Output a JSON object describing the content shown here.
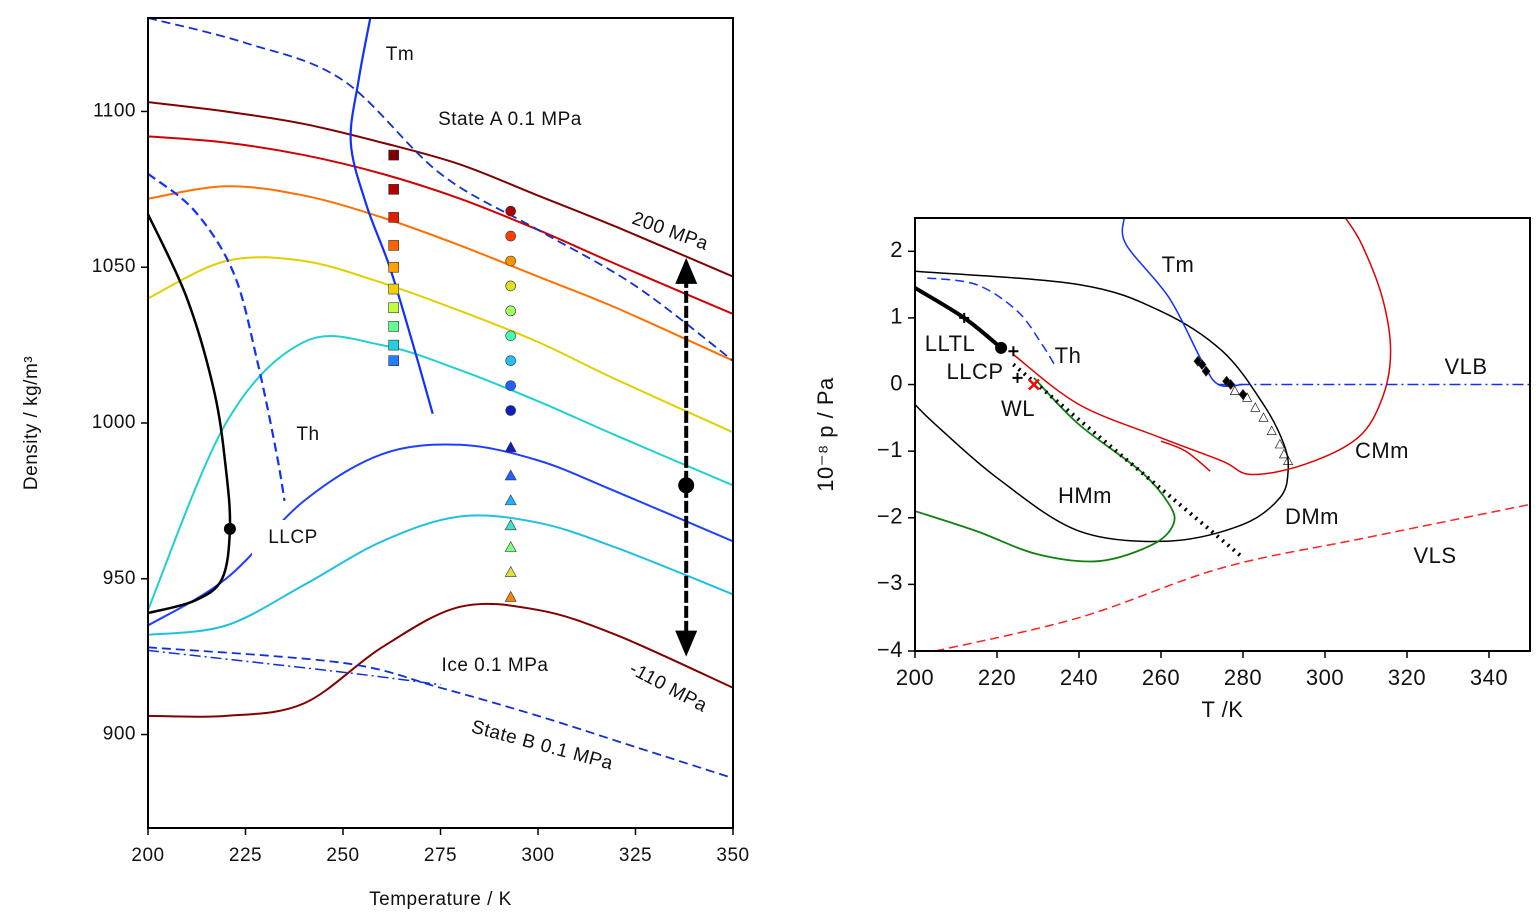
{
  "chart_data": [
    {
      "type": "line",
      "xlabel": "Temperature / K",
      "ylabel": "Density / kg/m³",
      "xlim": [
        200,
        350
      ],
      "ylim": [
        870,
        1130
      ],
      "xticks": [
        200,
        225,
        250,
        275,
        300,
        325,
        350
      ],
      "yticks": [
        900,
        950,
        1000,
        1050,
        1100
      ],
      "annotations": [
        "Tm",
        "State A 0.1 MPa",
        "200 MPa",
        "Th",
        "LLCP",
        "Ice 0.1 MPa",
        "-110 MPa",
        "State B 0.1 MPa"
      ],
      "lines": [
        {
          "color": "#800000",
          "style": "solid",
          "width": 2,
          "x": [
            200,
            220,
            240,
            260,
            280,
            300,
            320,
            350
          ],
          "values": [
            1103,
            1100,
            1096,
            1090,
            1083,
            1073,
            1063,
            1047
          ]
        },
        {
          "color": "#d00000",
          "style": "solid",
          "width": 2,
          "x": [
            200,
            220,
            240,
            260,
            280,
            300,
            320,
            350
          ],
          "values": [
            1092,
            1090,
            1086,
            1080,
            1072,
            1062,
            1051,
            1035
          ]
        },
        {
          "color": "#ff7000",
          "style": "solid",
          "width": 2,
          "x": [
            200,
            220,
            240,
            260,
            280,
            300,
            320,
            350
          ],
          "values": [
            1072,
            1076,
            1073,
            1066,
            1057,
            1047,
            1037,
            1020
          ]
        },
        {
          "color": "#e0d000",
          "style": "solid",
          "width": 2,
          "x": [
            200,
            220,
            240,
            260,
            280,
            300,
            320,
            350
          ],
          "values": [
            1040,
            1052,
            1052,
            1045,
            1036,
            1026,
            1014,
            997
          ]
        },
        {
          "color": "#20d0d0",
          "style": "solid",
          "width": 2,
          "x": [
            200,
            220,
            240,
            260,
            280,
            300,
            320,
            350
          ],
          "values": [
            940,
            1000,
            1026,
            1025,
            1017,
            1007,
            996,
            980
          ]
        },
        {
          "color": "#2040ff",
          "style": "solid",
          "width": 2,
          "x": [
            200,
            220,
            240,
            260,
            280,
            300,
            320,
            350
          ],
          "values": [
            935,
            950,
            975,
            990,
            993,
            988,
            978,
            962
          ]
        },
        {
          "color": "#20c0e0",
          "style": "solid",
          "width": 2,
          "x": [
            200,
            220,
            240,
            260,
            280,
            300,
            320,
            350
          ],
          "values": [
            932,
            935,
            948,
            962,
            970,
            968,
            960,
            945
          ]
        },
        {
          "color": "#800000",
          "style": "solid",
          "width": 2,
          "x": [
            200,
            220,
            240,
            260,
            280,
            300,
            320,
            350
          ],
          "values": [
            906,
            906,
            910,
            928,
            941,
            940,
            932,
            915
          ]
        },
        {
          "color": "#1030d0",
          "style": "dashed",
          "width": 1.8,
          "x": [
            200,
            225,
            250,
            275,
            300,
            325,
            350
          ],
          "values": [
            1130,
            1122,
            1110,
            1080,
            1062,
            1044,
            1020
          ]
        },
        {
          "color": "#1030d0",
          "style": "dashed",
          "width": 1.8,
          "x": [
            200,
            250,
            275,
            300,
            325,
            350
          ],
          "values": [
            928,
            923,
            915,
            906,
            896,
            886
          ]
        },
        {
          "color": "#1030d0",
          "style": "dashdot",
          "width": 1.5,
          "x": [
            200,
            250,
            275
          ],
          "values": [
            927,
            920,
            916
          ]
        },
        {
          "color": "#1030ff",
          "style": "dashed",
          "width": 2.2,
          "x": [
            200,
            212,
            222,
            228,
            233,
            235
          ],
          "values": [
            1080,
            1068,
            1048,
            1020,
            990,
            975
          ]
        },
        {
          "color": "#1030ff",
          "style": "solid",
          "width": 2.2,
          "x": [
            257,
            254,
            252,
            256,
            262,
            268,
            273
          ],
          "values": [
            1130,
            1110,
            1090,
            1070,
            1050,
            1025,
            1003
          ]
        },
        {
          "color": "#000000",
          "style": "solid",
          "width": 2.5,
          "x": [
            200,
            210,
            217,
            220,
            221,
            219,
            212,
            200
          ],
          "values": [
            1067,
            1040,
            1010,
            985,
            966,
            950,
            943,
            939
          ]
        }
      ],
      "markers": [
        {
          "shape": "square",
          "x": [
            263,
            263,
            263,
            263,
            263,
            263,
            263,
            263,
            263,
            263
          ],
          "values": [
            1086,
            1075,
            1066,
            1057,
            1050,
            1043,
            1037,
            1031,
            1025,
            1020
          ],
          "colors": [
            "#800000",
            "#b00000",
            "#e02000",
            "#ff6000",
            "#ffa000",
            "#f0d000",
            "#c0ff40",
            "#60ff90",
            "#20d0e0",
            "#2080ff"
          ]
        },
        {
          "shape": "circle",
          "x": [
            293,
            293,
            293,
            293,
            293,
            293,
            293,
            293,
            293
          ],
          "values": [
            1068,
            1060,
            1052,
            1044,
            1036,
            1028,
            1020,
            1012,
            1004
          ],
          "colors": [
            "#b00000",
            "#ff4000",
            "#ff9000",
            "#e0e020",
            "#a0ff60",
            "#40ffb0",
            "#20c0ff",
            "#2060ff",
            "#1020c0"
          ]
        },
        {
          "shape": "triangle",
          "x": [
            293,
            293,
            293,
            293,
            293,
            293,
            293
          ],
          "values": [
            992,
            983,
            975,
            967,
            960,
            952,
            944
          ],
          "colors": [
            "#1020c0",
            "#2060ff",
            "#20b0ff",
            "#40e0d0",
            "#80ff80",
            "#e0e040",
            "#ff8000"
          ]
        }
      ],
      "points": [
        {
          "x": 221,
          "y": 966
        }
      ],
      "arrow": {
        "x": 338,
        "from": 1053,
        "to": 925,
        "point": 980
      }
    },
    {
      "type": "line",
      "xlabel": "T /K",
      "ylabel": "10⁻⁸ p / Pa",
      "xlim": [
        200,
        350
      ],
      "ylim": [
        -4,
        2.5
      ],
      "xticks": [
        200,
        220,
        240,
        260,
        280,
        300,
        320,
        340
      ],
      "yticks": [
        {
          "value": -4,
          "label": "−4"
        },
        {
          "value": -3,
          "label": "−3"
        },
        {
          "value": -2,
          "label": "−2"
        },
        {
          "value": -1,
          "label": "−1"
        },
        0,
        1,
        2
      ],
      "annotations": [
        "Tm",
        "LLTL",
        "LLCP",
        "Th",
        "WL",
        "VLB",
        "CMm",
        "HMm",
        "DMm",
        "VLS"
      ],
      "lines": [
        {
          "color": "#000000",
          "style": "solid",
          "width": 1.5,
          "x": [
            200,
            240,
            260,
            275,
            285,
            290,
            291,
            289,
            280,
            262,
            240,
            220,
            205,
            200
          ],
          "values": [
            1.7,
            1.5,
            1.1,
            0.5,
            -0.3,
            -0.9,
            -1.3,
            -1.7,
            -2.1,
            -2.35,
            -2.2,
            -1.4,
            -0.6,
            -0.3
          ]
        },
        {
          "color": "#e00000",
          "style": "solid",
          "width": 1.5,
          "x": [
            224,
            240,
            260,
            275,
            282,
            295,
            308,
            314,
            316,
            314,
            309,
            305
          ],
          "values": [
            0.45,
            -0.3,
            -0.8,
            -1.15,
            -1.35,
            -1.2,
            -0.8,
            -0.2,
            0.5,
            1.3,
            2.1,
            2.5
          ]
        },
        {
          "color": "#e00000",
          "style": "solid",
          "width": 1.5,
          "x": [
            260,
            266,
            272
          ],
          "values": [
            -0.85,
            -1.0,
            -1.3
          ]
        },
        {
          "color": "#108010",
          "style": "solid",
          "width": 1.8,
          "x": [
            229,
            240,
            255,
            262,
            263,
            258,
            245,
            230,
            215,
            200
          ],
          "values": [
            0.1,
            -0.6,
            -1.3,
            -1.8,
            -2.1,
            -2.4,
            -2.65,
            -2.55,
            -2.2,
            -1.9
          ]
        },
        {
          "color": "#000000",
          "style": "dotted",
          "width": 4,
          "x": [
            224,
            280
          ],
          "values": [
            0.3,
            -2.6
          ]
        },
        {
          "color": "#000000",
          "style": "solid",
          "width": 4,
          "x": [
            200,
            212,
            221
          ],
          "values": [
            1.45,
            1.0,
            0.55
          ]
        },
        {
          "color": "#1030ff",
          "style": "dashed",
          "width": 1.5,
          "x": [
            203,
            215,
            225,
            231,
            234
          ],
          "values": [
            1.6,
            1.5,
            1.1,
            0.6,
            0.3
          ]
        },
        {
          "color": "#1030ff",
          "style": "solid",
          "width": 1.5,
          "x": [
            251,
            251.5,
            262,
            270,
            274,
            280
          ],
          "values": [
            2.5,
            2.1,
            1.3,
            0.35,
            0,
            0
          ]
        },
        {
          "color": "#1030ff",
          "style": "dashdot",
          "width": 1.5,
          "x": [
            274,
            350
          ],
          "values": [
            0,
            0
          ]
        },
        {
          "color": "#ff2020",
          "style": "dashed",
          "width": 1.5,
          "x": [
            205,
            240,
            275,
            310,
            350
          ],
          "values": [
            -4,
            -3.5,
            -2.75,
            -2.3,
            -1.8
          ]
        }
      ],
      "markers": [
        {
          "shape": "diamond",
          "x": [
            269,
            270,
            271,
            276,
            277,
            280
          ],
          "values": [
            0.35,
            0.3,
            0.2,
            0.05,
            0,
            -0.15
          ],
          "colors": [
            "#000000",
            "#000000",
            "#000000",
            "#000000",
            "#000000",
            "#000000"
          ]
        },
        {
          "shape": "opentriangle",
          "x": [
            278,
            281,
            283,
            285,
            287,
            289,
            290,
            291
          ],
          "values": [
            -0.1,
            -0.2,
            -0.35,
            -0.5,
            -0.7,
            -0.9,
            -1.05,
            -1.15
          ],
          "colors": [
            "#000000",
            "#000000",
            "#000000",
            "#000000",
            "#000000",
            "#000000",
            "#000000",
            "#000000"
          ]
        },
        {
          "shape": "plus",
          "x": [
            212,
            224,
            225
          ],
          "values": [
            1.0,
            0.5,
            0.1
          ],
          "colors": [
            "#000000",
            "#000000",
            "#000000"
          ]
        },
        {
          "shape": "cross",
          "x": [
            229
          ],
          "values": [
            0
          ],
          "colors": [
            "#ff0000"
          ]
        }
      ],
      "points": [
        {
          "x": 221,
          "y": 0.55
        }
      ]
    }
  ]
}
